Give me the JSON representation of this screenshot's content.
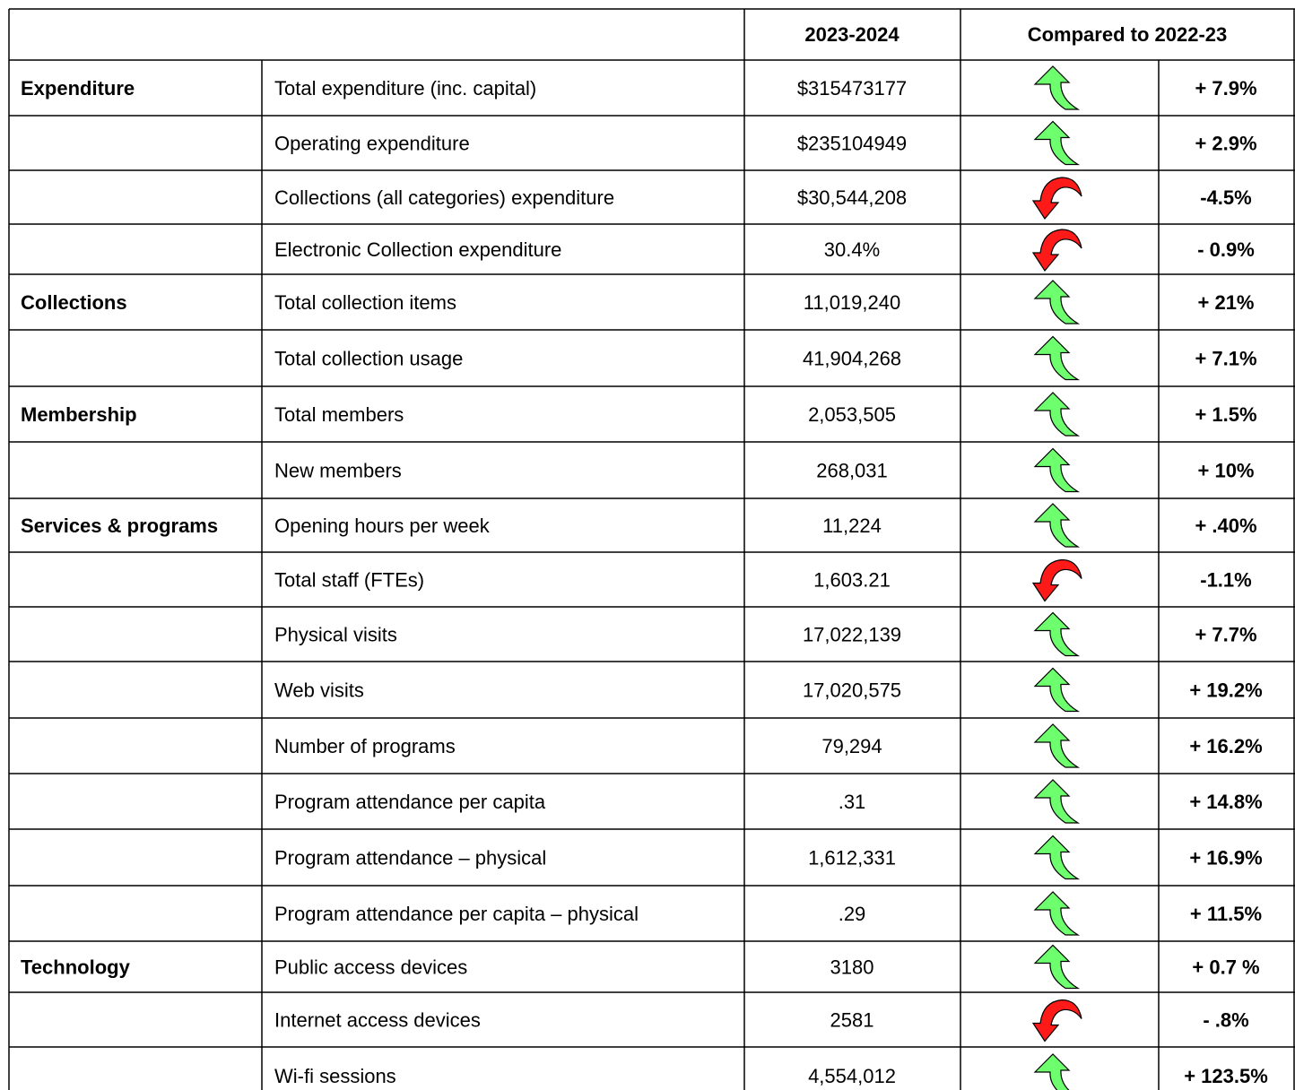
{
  "header": {
    "period": "2023-2024",
    "comparison": "Compared to 2022-23"
  },
  "rows": [
    {
      "category": "Expenditure",
      "metric": "Total expenditure (inc. capital)",
      "value": "$315473177",
      "change": "+ 7.9%"
    },
    {
      "metric": "Operating expenditure",
      "value": "$235104949",
      "change": "+ 2.9%"
    },
    {
      "metric": "Collections (all categories) expenditure",
      "value": "$30,544,208",
      "change": "-4.5%"
    },
    {
      "metric": "Electronic Collection expenditure",
      "value": "30.4%",
      "change": "- 0.9%"
    },
    {
      "category": "Collections",
      "metric": "Total collection items",
      "value": "11,019,240",
      "change": "+ 21%"
    },
    {
      "metric": "Total collection usage",
      "value": "41,904,268",
      "change": "+ 7.1%"
    },
    {
      "category": "Membership",
      "metric": "Total members",
      "value": "2,053,505",
      "change": "+ 1.5%"
    },
    {
      "metric": "New members",
      "value": "268,031",
      "change": "+ 10%"
    },
    {
      "category": "Services & programs",
      "metric": "Opening hours per week",
      "value": "11,224",
      "change": "+ .40%"
    },
    {
      "metric": "Total staff (FTEs)",
      "value": "1,603.21",
      "change": "-1.1%"
    },
    {
      "metric": "Physical visits",
      "value": "17,022,139",
      "change": "+ 7.7%"
    },
    {
      "metric": "Web visits",
      "value": "17,020,575",
      "change": "+ 19.2%"
    },
    {
      "metric": "Number of programs",
      "value": "79,294",
      "change": "+ 16.2%"
    },
    {
      "metric": "Program attendance per capita",
      "value": ".31",
      "change": "+ 14.8%"
    },
    {
      "metric": "Program attendance – physical",
      "value": "1,612,331",
      "change": "+ 16.9%"
    },
    {
      "metric": "Program attendance per capita – physical",
      "value": ".29",
      "change": "+ 11.5%"
    },
    {
      "category": "Technology",
      "metric": "Public access devices",
      "value": "3180",
      "change": "+ 0.7 %"
    },
    {
      "metric": "Internet access devices",
      "value": "2581",
      "change": "- .8%"
    },
    {
      "metric": "Wi-fi sessions",
      "value": "4,554,012",
      "change": "+ 123.5%"
    }
  ]
}
